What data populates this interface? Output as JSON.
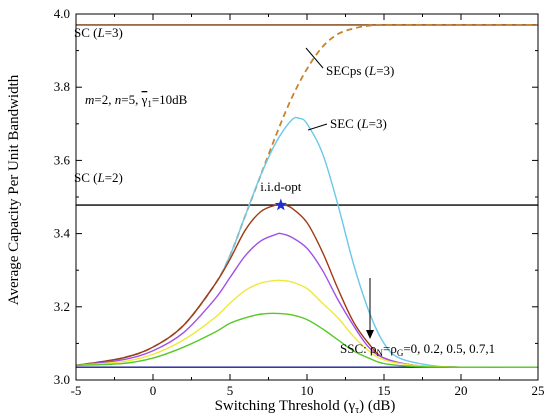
{
  "chart_data": {
    "type": "line",
    "xlabel": "Switching Threshold (γ",
    "xlabel_sub": "τ",
    "xlabel_tail": ") (dB)",
    "ylabel": "Average Capacity Per Unit Bandwidth",
    "xlim": [
      -5,
      25
    ],
    "ylim": [
      3.0,
      4.0
    ],
    "xticks": [
      "-5",
      "0",
      "5",
      "10",
      "15",
      "20",
      "25"
    ],
    "yticks": [
      "3.0",
      "3.2",
      "3.4",
      "3.6",
      "3.8",
      "4.0"
    ],
    "grid": false,
    "series": [
      {
        "name": "SC (L=3)",
        "style": "solid",
        "color": "#7a3a0a",
        "x": [
          -5,
          25
        ],
        "y": [
          3.97,
          3.97
        ]
      },
      {
        "name": "SC (L=2)",
        "style": "solid",
        "color": "#000000",
        "x": [
          -5,
          25
        ],
        "y": [
          3.478,
          3.478
        ]
      },
      {
        "name": "SSC",
        "style": "solid",
        "color": "#1a1a9a",
        "x": [
          -5,
          25
        ],
        "y": [
          3.035,
          3.035
        ]
      },
      {
        "name": "SECps (L=3)",
        "style": "dashed",
        "color": "#c8822a",
        "x": [
          -5,
          -2,
          0,
          2,
          4,
          5,
          6,
          7,
          8,
          9,
          10,
          11,
          12,
          13,
          14,
          15,
          17,
          20,
          25
        ],
        "y": [
          3.04,
          3.06,
          3.09,
          3.15,
          3.26,
          3.34,
          3.45,
          3.56,
          3.67,
          3.77,
          3.85,
          3.91,
          3.945,
          3.96,
          3.968,
          3.97,
          3.97,
          3.97,
          3.97
        ]
      },
      {
        "name": "SEC (L=3)",
        "style": "solid",
        "color": "#6cc8e8",
        "x": [
          -5,
          -2,
          0,
          2,
          4,
          5,
          6,
          7,
          8,
          9,
          9.5,
          10,
          11,
          12,
          13,
          14,
          15,
          16,
          18,
          20,
          25
        ],
        "y": [
          3.04,
          3.06,
          3.09,
          3.15,
          3.26,
          3.34,
          3.45,
          3.56,
          3.65,
          3.71,
          3.715,
          3.7,
          3.62,
          3.48,
          3.32,
          3.19,
          3.1,
          3.06,
          3.04,
          3.035,
          3.035
        ]
      },
      {
        "name": "SSC ρ=0",
        "style": "solid",
        "color": "#a03a14",
        "x": [
          -5,
          -2,
          0,
          2,
          4,
          5,
          6,
          7,
          8,
          8.5,
          9,
          10,
          11,
          12,
          13,
          14,
          15,
          17,
          20,
          25
        ],
        "y": [
          3.04,
          3.06,
          3.09,
          3.15,
          3.26,
          3.33,
          3.41,
          3.46,
          3.478,
          3.478,
          3.47,
          3.43,
          3.35,
          3.25,
          3.16,
          3.1,
          3.06,
          3.04,
          3.035,
          3.035
        ]
      },
      {
        "name": "SSC ρ=0.2",
        "style": "solid",
        "color": "#a050e8",
        "x": [
          -5,
          -2,
          0,
          2,
          4,
          5,
          6,
          7,
          8,
          8.3,
          9,
          10,
          11,
          12,
          13,
          14,
          15,
          17,
          20,
          25
        ],
        "y": [
          3.04,
          3.055,
          3.08,
          3.13,
          3.22,
          3.28,
          3.34,
          3.38,
          3.398,
          3.4,
          3.39,
          3.36,
          3.3,
          3.22,
          3.15,
          3.09,
          3.06,
          3.04,
          3.035,
          3.035
        ]
      },
      {
        "name": "SSC ρ=0.5",
        "style": "solid",
        "color": "#f0e838",
        "x": [
          -5,
          -2,
          0,
          2,
          4,
          5,
          6,
          7,
          8,
          8.3,
          9,
          10,
          11,
          12,
          13,
          14,
          15,
          17,
          20,
          25
        ],
        "y": [
          3.04,
          3.05,
          3.07,
          3.11,
          3.17,
          3.21,
          3.245,
          3.265,
          3.272,
          3.272,
          3.268,
          3.25,
          3.21,
          3.17,
          3.12,
          3.08,
          3.055,
          3.04,
          3.035,
          3.035
        ]
      },
      {
        "name": "SSC ρ=0.7",
        "style": "solid",
        "color": "#58c828",
        "x": [
          -5,
          -2,
          0,
          2,
          4,
          5,
          6,
          7,
          8,
          9,
          10,
          11,
          12,
          13,
          14,
          15,
          17,
          20,
          25
        ],
        "y": [
          3.04,
          3.045,
          3.06,
          3.09,
          3.13,
          3.155,
          3.17,
          3.18,
          3.182,
          3.178,
          3.165,
          3.14,
          3.11,
          3.08,
          3.06,
          3.045,
          3.037,
          3.035,
          3.035
        ]
      }
    ],
    "marker": {
      "label": "i.i.d-opt",
      "x": 8.3,
      "y": 3.478,
      "shape": "star",
      "color": "#2030d0"
    },
    "annotations": {
      "sc3": "SC (",
      "sc3_L": "L",
      "sc3_tail": "=3)",
      "sc2": "SC (",
      "sc2_L": "L",
      "sc2_tail": "=2)",
      "secps": "SECps (",
      "secps_L": "L",
      "secps_tail": "=3)",
      "sec": "SEC (",
      "sec_L": "L",
      "sec_tail": "=3)",
      "params_m": "m",
      "params_m_val": "=2, ",
      "params_n": "n",
      "params_n_val": "=5, ",
      "params_g": "γ",
      "params_g_sub": "1",
      "params_g_val": "=10dB",
      "ssc_prefix": "SSC: ρ",
      "ssc_N": "N",
      "ssc_eq": "=ρ",
      "ssc_G": "G",
      "ssc_vals": "=0, 0.2, 0.5, 0.7,1"
    }
  }
}
